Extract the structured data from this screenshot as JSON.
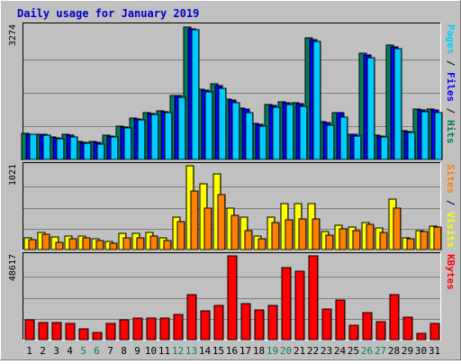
{
  "chart_data": {
    "type": "bar",
    "title": "Daily usage for January 2019",
    "categories": [
      "1",
      "2",
      "3",
      "4",
      "5",
      "6",
      "7",
      "8",
      "9",
      "10",
      "11",
      "12",
      "13",
      "14",
      "15",
      "16",
      "17",
      "18",
      "19",
      "20",
      "21",
      "22",
      "23",
      "24",
      "25",
      "26",
      "27",
      "28",
      "29",
      "30",
      "31"
    ],
    "weekend_days": [
      "5",
      "6",
      "12",
      "13",
      "19",
      "20",
      "26",
      "27"
    ],
    "colors": {
      "background": "#C0C0C0",
      "frame": "#ECECEC",
      "title": "#0000CC",
      "hits": "#00805C",
      "files": "#0000FF",
      "pages": "#00CCFF",
      "visits": "#FFFF00",
      "sites": "#FF8000",
      "kbytes": "#FF0000",
      "weekend_label": "#00805C",
      "weekday_label": "#000000"
    },
    "panels": [
      {
        "id": "hits-files-pages",
        "ymax_label": "3274",
        "ylim": [
          0,
          3274
        ],
        "legend": [
          {
            "text": "Pages",
            "color": "#00CCFF"
          },
          {
            "text": " / ",
            "color": "#000000"
          },
          {
            "text": "Files",
            "color": "#0000FF"
          },
          {
            "text": " / ",
            "color": "#000000"
          },
          {
            "text": "Hits",
            "color": "#00805C"
          }
        ],
        "series": [
          {
            "name": "Hits",
            "color": "#00805C",
            "values": [
              650,
              630,
              545,
              630,
              440,
              440,
              590,
              810,
              1010,
              1140,
              1200,
              1580,
              3250,
              1730,
              1850,
              1490,
              1250,
              880,
              1350,
              1420,
              1400,
              2980,
              930,
              1160,
              630,
              2600,
              590,
              2800,
              700,
              1230,
              1230
            ]
          },
          {
            "name": "Files",
            "color": "#0000FF",
            "values": [
              630,
              610,
              520,
              600,
              430,
              430,
              570,
              790,
              990,
              1120,
              1180,
              1560,
              3210,
              1710,
              1820,
              1470,
              1230,
              870,
              1330,
              1400,
              1380,
              2940,
              910,
              1140,
              610,
              2570,
              570,
              2760,
              680,
              1210,
              1210
            ]
          },
          {
            "name": "Pages",
            "color": "#00CCFF",
            "values": [
              610,
              590,
              500,
              560,
              390,
              380,
              550,
              770,
              970,
              1100,
              1150,
              1520,
              3180,
              1660,
              1740,
              1400,
              1150,
              820,
              1280,
              1340,
              1310,
              2900,
              850,
              1050,
              580,
              2500,
              550,
              2720,
              660,
              1170,
              1150
            ]
          }
        ]
      },
      {
        "id": "visits-sites",
        "ymax_label": "1021",
        "ylim": [
          0,
          1021
        ],
        "legend": [
          {
            "text": "Sites",
            "color": "#FF8000"
          },
          {
            "text": " / ",
            "color": "#000000"
          },
          {
            "text": "Visits",
            "color": "#FFFF00"
          }
        ],
        "series": [
          {
            "name": "Visits",
            "color": "#FFFF00",
            "values": [
              140,
              210,
              150,
              170,
              170,
              130,
              100,
              200,
              200,
              205,
              140,
              400,
              1021,
              800,
              920,
              500,
              400,
              170,
              400,
              560,
              560,
              560,
              220,
              300,
              270,
              330,
              260,
              620,
              140,
              230,
              290
            ]
          },
          {
            "name": "Sites",
            "color": "#FF8000",
            "values": [
              120,
              185,
              90,
              135,
              140,
              105,
              80,
              145,
              145,
              170,
              110,
              340,
              710,
              500,
              670,
              420,
              230,
              130,
              330,
              360,
              370,
              370,
              180,
              250,
              230,
              310,
              210,
              510,
              130,
              220,
              270
            ]
          }
        ]
      },
      {
        "id": "kbytes",
        "ymax_label": "48617",
        "ylim": [
          0,
          48617
        ],
        "legend": [
          {
            "text": "KBytes",
            "color": "#FF0000"
          }
        ],
        "series": [
          {
            "name": "KBytes",
            "color": "#FF0000",
            "values": [
              11500,
              9700,
              9900,
              9300,
              6200,
              4100,
              9200,
              11300,
              12600,
              12800,
              12400,
              14700,
              26100,
              16600,
              19700,
              48617,
              21000,
              17200,
              19800,
              42000,
              39500,
              48617,
              17900,
              22800,
              8400,
              15500,
              10600,
              26100,
              13300,
              3600,
              9200
            ]
          }
        ]
      }
    ]
  }
}
